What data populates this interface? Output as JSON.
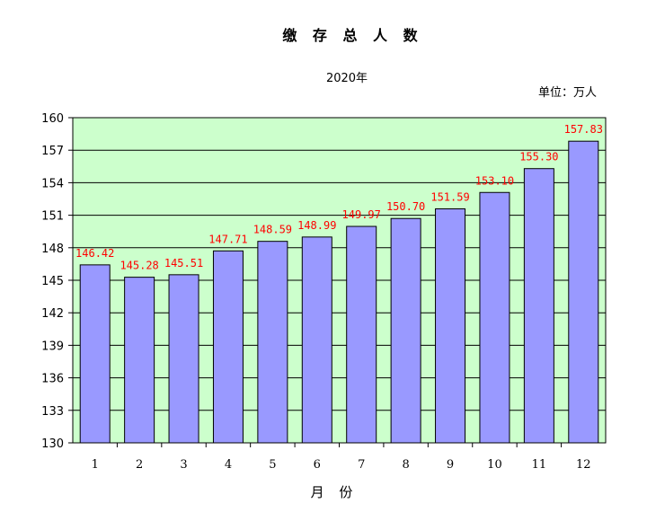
{
  "chart_data": {
    "type": "bar",
    "title": "缴 存 总 人 数",
    "subtitle": "2020年",
    "unit_label": "单位：万人",
    "xlabel": "月 份",
    "ylabel": "",
    "categories": [
      "1",
      "2",
      "3",
      "4",
      "5",
      "6",
      "7",
      "8",
      "9",
      "10",
      "11",
      "12"
    ],
    "values": [
      146.42,
      145.28,
      145.51,
      147.71,
      148.59,
      148.99,
      149.97,
      150.7,
      151.59,
      153.1,
      155.3,
      157.83
    ],
    "data_labels": [
      "146.42",
      "145.28",
      "145.51",
      "147.71",
      "148.59",
      "148.99",
      "149.97",
      "150.70",
      "151.59",
      "153.10",
      "155.30",
      "157.83"
    ],
    "ylim": [
      130,
      160
    ],
    "yticks": [
      "130",
      "133",
      "136",
      "139",
      "142",
      "145",
      "148",
      "151",
      "154",
      "157",
      "160"
    ],
    "grid": true,
    "legend": "none",
    "colors": {
      "bar_fill": "#9999ff",
      "plot_background": "#ccffcc",
      "data_label": "#ff0000",
      "gridline": "#000000"
    }
  }
}
